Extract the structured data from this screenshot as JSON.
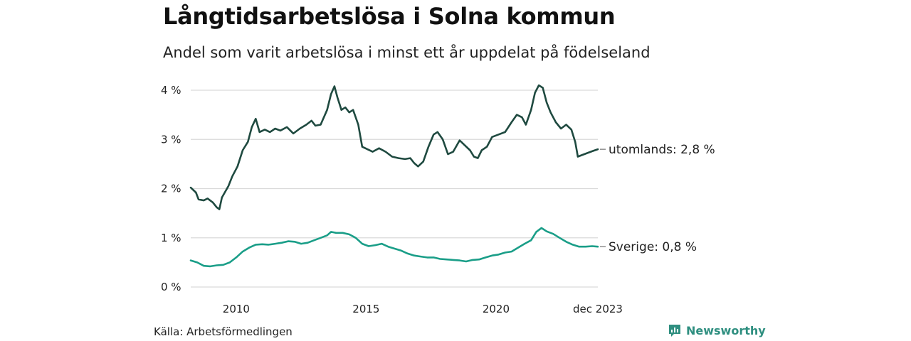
{
  "header": {
    "title": "Långtidsarbetslösa i Solna kommun",
    "subtitle": "Andel som varit arbetslösa i minst ett år uppdelat på födelseland"
  },
  "footer": {
    "source": "Källa: Arbetsförmedlingen",
    "brand": "Newsworthy"
  },
  "colors": {
    "foreign": "#1f4a40",
    "sweden": "#1a9e88",
    "grid": "#d9d9d9",
    "brand": "#2f8f80"
  },
  "chart_data": {
    "type": "line",
    "title": "Långtidsarbetslösa i Solna kommun",
    "subtitle": "Andel som varit arbetslösa i minst ett år uppdelat på födelseland",
    "xlabel": "",
    "ylabel": "",
    "x_range": [
      2008.25,
      2023.92
    ],
    "ylim": [
      0,
      4
    ],
    "grid": true,
    "y_ticks": [
      {
        "value": 0,
        "label": "0 %"
      },
      {
        "value": 1,
        "label": "1 %"
      },
      {
        "value": 2,
        "label": "2 %"
      },
      {
        "value": 3,
        "label": "3 %"
      },
      {
        "value": 4,
        "label": "4 %"
      }
    ],
    "x_ticks": [
      {
        "value": 2010,
        "label": "2010"
      },
      {
        "value": 2015,
        "label": "2015"
      },
      {
        "value": 2020,
        "label": "2020"
      },
      {
        "value": 2023.92,
        "label": "dec 2023"
      }
    ],
    "series": [
      {
        "name": "utomlands",
        "end_label": "utomlands: 2,8 %",
        "color": "#1f4a40",
        "points": [
          [
            2008.25,
            2.02
          ],
          [
            2008.45,
            1.92
          ],
          [
            2008.55,
            1.78
          ],
          [
            2008.75,
            1.76
          ],
          [
            2008.9,
            1.8
          ],
          [
            2009.1,
            1.72
          ],
          [
            2009.25,
            1.62
          ],
          [
            2009.35,
            1.58
          ],
          [
            2009.45,
            1.82
          ],
          [
            2009.7,
            2.05
          ],
          [
            2009.85,
            2.25
          ],
          [
            2010.05,
            2.45
          ],
          [
            2010.25,
            2.78
          ],
          [
            2010.45,
            2.95
          ],
          [
            2010.6,
            3.25
          ],
          [
            2010.75,
            3.42
          ],
          [
            2010.9,
            3.15
          ],
          [
            2011.1,
            3.2
          ],
          [
            2011.3,
            3.15
          ],
          [
            2011.5,
            3.22
          ],
          [
            2011.7,
            3.18
          ],
          [
            2011.95,
            3.25
          ],
          [
            2012.2,
            3.12
          ],
          [
            2012.45,
            3.22
          ],
          [
            2012.7,
            3.3
          ],
          [
            2012.9,
            3.38
          ],
          [
            2013.05,
            3.28
          ],
          [
            2013.25,
            3.3
          ],
          [
            2013.5,
            3.6
          ],
          [
            2013.65,
            3.92
          ],
          [
            2013.78,
            4.08
          ],
          [
            2013.9,
            3.85
          ],
          [
            2014.05,
            3.6
          ],
          [
            2014.2,
            3.65
          ],
          [
            2014.35,
            3.55
          ],
          [
            2014.5,
            3.6
          ],
          [
            2014.7,
            3.3
          ],
          [
            2014.85,
            2.85
          ],
          [
            2015.05,
            2.8
          ],
          [
            2015.25,
            2.75
          ],
          [
            2015.5,
            2.82
          ],
          [
            2015.75,
            2.75
          ],
          [
            2016.0,
            2.65
          ],
          [
            2016.25,
            2.62
          ],
          [
            2016.5,
            2.6
          ],
          [
            2016.7,
            2.62
          ],
          [
            2016.85,
            2.52
          ],
          [
            2017.0,
            2.45
          ],
          [
            2017.2,
            2.55
          ],
          [
            2017.4,
            2.85
          ],
          [
            2017.6,
            3.1
          ],
          [
            2017.75,
            3.15
          ],
          [
            2017.95,
            3.0
          ],
          [
            2018.15,
            2.7
          ],
          [
            2018.35,
            2.75
          ],
          [
            2018.6,
            2.98
          ],
          [
            2018.8,
            2.88
          ],
          [
            2019.0,
            2.78
          ],
          [
            2019.15,
            2.65
          ],
          [
            2019.3,
            2.62
          ],
          [
            2019.45,
            2.78
          ],
          [
            2019.65,
            2.85
          ],
          [
            2019.85,
            3.05
          ],
          [
            2020.1,
            3.1
          ],
          [
            2020.35,
            3.15
          ],
          [
            2020.6,
            3.35
          ],
          [
            2020.8,
            3.5
          ],
          [
            2021.0,
            3.45
          ],
          [
            2021.15,
            3.3
          ],
          [
            2021.35,
            3.6
          ],
          [
            2021.5,
            3.95
          ],
          [
            2021.65,
            4.1
          ],
          [
            2021.8,
            4.05
          ],
          [
            2021.95,
            3.75
          ],
          [
            2022.1,
            3.55
          ],
          [
            2022.3,
            3.35
          ],
          [
            2022.5,
            3.22
          ],
          [
            2022.7,
            3.3
          ],
          [
            2022.9,
            3.2
          ],
          [
            2023.05,
            2.95
          ],
          [
            2023.15,
            2.65
          ],
          [
            2023.3,
            2.68
          ],
          [
            2023.5,
            2.72
          ],
          [
            2023.7,
            2.76
          ],
          [
            2023.92,
            2.8
          ]
        ]
      },
      {
        "name": "Sverige",
        "end_label": "Sverige: 0,8 %",
        "color": "#1a9e88",
        "points": [
          [
            2008.25,
            0.54
          ],
          [
            2008.5,
            0.5
          ],
          [
            2008.75,
            0.43
          ],
          [
            2009.0,
            0.42
          ],
          [
            2009.25,
            0.44
          ],
          [
            2009.5,
            0.45
          ],
          [
            2009.75,
            0.5
          ],
          [
            2010.0,
            0.6
          ],
          [
            2010.25,
            0.72
          ],
          [
            2010.5,
            0.8
          ],
          [
            2010.75,
            0.86
          ],
          [
            2011.0,
            0.87
          ],
          [
            2011.25,
            0.86
          ],
          [
            2011.5,
            0.88
          ],
          [
            2011.75,
            0.9
          ],
          [
            2012.0,
            0.93
          ],
          [
            2012.25,
            0.92
          ],
          [
            2012.5,
            0.88
          ],
          [
            2012.75,
            0.9
          ],
          [
            2013.0,
            0.95
          ],
          [
            2013.25,
            1.0
          ],
          [
            2013.5,
            1.05
          ],
          [
            2013.65,
            1.12
          ],
          [
            2013.85,
            1.1
          ],
          [
            2014.1,
            1.1
          ],
          [
            2014.35,
            1.07
          ],
          [
            2014.6,
            1.0
          ],
          [
            2014.85,
            0.88
          ],
          [
            2015.1,
            0.83
          ],
          [
            2015.35,
            0.85
          ],
          [
            2015.6,
            0.88
          ],
          [
            2015.85,
            0.82
          ],
          [
            2016.1,
            0.78
          ],
          [
            2016.35,
            0.74
          ],
          [
            2016.6,
            0.68
          ],
          [
            2016.85,
            0.64
          ],
          [
            2017.1,
            0.62
          ],
          [
            2017.35,
            0.6
          ],
          [
            2017.6,
            0.6
          ],
          [
            2017.85,
            0.57
          ],
          [
            2018.1,
            0.56
          ],
          [
            2018.35,
            0.55
          ],
          [
            2018.6,
            0.54
          ],
          [
            2018.85,
            0.52
          ],
          [
            2019.1,
            0.55
          ],
          [
            2019.35,
            0.56
          ],
          [
            2019.6,
            0.6
          ],
          [
            2019.85,
            0.64
          ],
          [
            2020.1,
            0.66
          ],
          [
            2020.35,
            0.7
          ],
          [
            2020.6,
            0.72
          ],
          [
            2020.85,
            0.8
          ],
          [
            2021.1,
            0.88
          ],
          [
            2021.35,
            0.95
          ],
          [
            2021.55,
            1.12
          ],
          [
            2021.75,
            1.2
          ],
          [
            2021.95,
            1.13
          ],
          [
            2022.2,
            1.08
          ],
          [
            2022.45,
            1.0
          ],
          [
            2022.7,
            0.92
          ],
          [
            2022.95,
            0.86
          ],
          [
            2023.2,
            0.82
          ],
          [
            2023.45,
            0.82
          ],
          [
            2023.7,
            0.83
          ],
          [
            2023.92,
            0.82
          ]
        ]
      }
    ]
  }
}
